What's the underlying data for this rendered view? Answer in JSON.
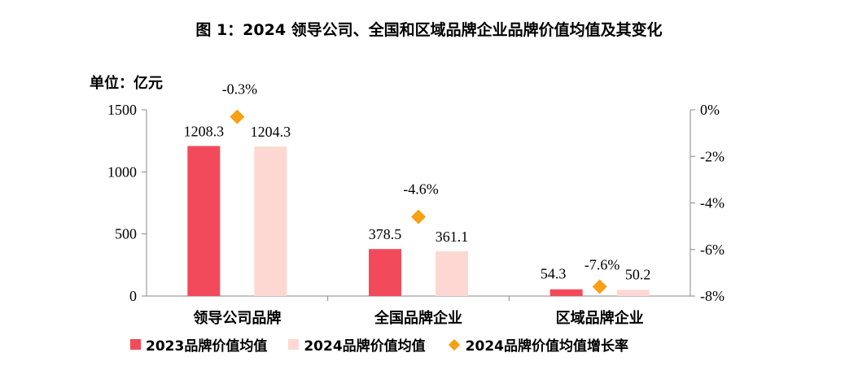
{
  "title": "图 1：2024 领导公司、全国和区域品牌企业品牌价值均值及其变化",
  "unit_label": "单位：亿元",
  "chart_data": {
    "type": "bar",
    "categories": [
      "领导公司品牌",
      "全国品牌企业",
      "区域品牌企业"
    ],
    "series": [
      {
        "name": "2023品牌价值均值",
        "type": "bar",
        "axis": "left",
        "color": "#f24a5a",
        "values": [
          1208.3,
          378.5,
          54.3
        ],
        "labels": [
          "1208.3",
          "378.5",
          "54.3"
        ]
      },
      {
        "name": "2024品牌价值均值",
        "type": "bar",
        "axis": "left",
        "color": "#fdd8d2",
        "values": [
          1204.3,
          361.1,
          50.2
        ],
        "labels": [
          "1204.3",
          "361.1",
          "50.2"
        ]
      },
      {
        "name": "2024品牌价值均值增长率",
        "type": "scatter",
        "marker": "diamond",
        "axis": "right",
        "color": "#f7a013",
        "values": [
          -0.3,
          -4.6,
          -7.6
        ],
        "labels": [
          "-0.3%",
          "-4.6%",
          "-7.6%"
        ]
      }
    ],
    "y_left": {
      "ylim": [
        0,
        1500
      ],
      "ticks": [
        0,
        500,
        1000,
        1500
      ],
      "tick_labels": [
        "0",
        "500",
        "1000",
        "1500"
      ]
    },
    "y_right": {
      "ylim": [
        -8,
        0
      ],
      "ticks": [
        0,
        -2,
        -4,
        -6,
        -8
      ],
      "tick_labels": [
        "0%",
        "-2%",
        "-4%",
        "-6%",
        "-8%"
      ]
    },
    "legend_position": "bottom",
    "grid": false
  }
}
